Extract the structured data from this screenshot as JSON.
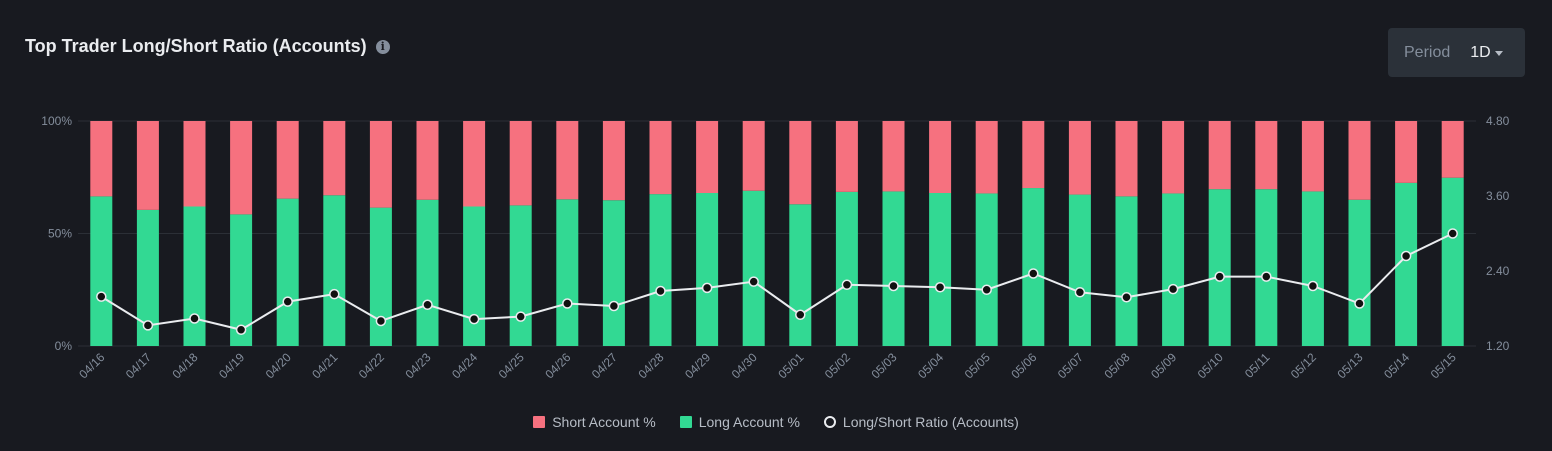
{
  "header": {
    "title": "Top Trader Long/Short Ratio (Accounts)",
    "info_icon": "info-icon",
    "period_label": "Period",
    "period_value": "1D"
  },
  "colors": {
    "background": "#181a20",
    "short": "#f6717f",
    "long": "#32d993",
    "line": "#eaecef",
    "grid": "#2b2f36",
    "axis_text": "#848e9c"
  },
  "chart_data": {
    "type": "bar",
    "stacked": true,
    "categories": [
      "04/16",
      "04/17",
      "04/18",
      "04/19",
      "04/20",
      "04/21",
      "04/22",
      "04/23",
      "04/24",
      "04/25",
      "04/26",
      "04/27",
      "04/28",
      "04/29",
      "04/30",
      "05/01",
      "05/02",
      "05/03",
      "05/04",
      "05/05",
      "05/06",
      "05/07",
      "05/08",
      "05/09",
      "05/10",
      "05/11",
      "05/12",
      "05/13",
      "05/14",
      "05/15"
    ],
    "y_left": {
      "ticks": [
        "100%",
        "50%",
        "0%"
      ],
      "range": [
        0,
        100
      ]
    },
    "y_right": {
      "ticks": [
        "4.80",
        "3.60",
        "2.40",
        "1.20"
      ],
      "range": [
        1.2,
        4.8
      ]
    },
    "series": [
      {
        "name": "Short Account %",
        "axis": "left",
        "values": [
          33.5,
          39.5,
          38,
          41.5,
          34.5,
          33,
          38.5,
          35,
          38,
          37.5,
          34.8,
          35.2,
          32.5,
          32,
          31,
          37,
          31.5,
          31.3,
          32,
          32.2,
          29.8,
          32.7,
          33.5,
          32.2,
          30.3,
          30.3,
          31.3,
          35,
          27.5,
          25.2
        ]
      },
      {
        "name": "Long Account %",
        "axis": "left",
        "values": [
          66.5,
          60.5,
          62,
          58.5,
          65.5,
          67,
          61.5,
          65,
          62,
          62.5,
          65.2,
          64.8,
          67.5,
          68,
          69,
          63,
          68.5,
          68.7,
          68,
          67.8,
          70.2,
          67.3,
          66.5,
          67.8,
          69.7,
          69.7,
          68.7,
          65,
          72.5,
          74.8
        ]
      },
      {
        "name": "Long/Short Ratio (Accounts)",
        "axis": "right",
        "type": "line",
        "values": [
          1.99,
          1.53,
          1.64,
          1.46,
          1.91,
          2.03,
          1.6,
          1.86,
          1.63,
          1.67,
          1.88,
          1.84,
          2.08,
          2.13,
          2.23,
          1.7,
          2.18,
          2.16,
          2.14,
          2.1,
          2.36,
          2.06,
          1.98,
          2.11,
          2.31,
          2.31,
          2.16,
          1.88,
          2.64,
          3.0
        ]
      }
    ]
  },
  "legend": {
    "short": "Short Account %",
    "long": "Long Account %",
    "ratio": "Long/Short Ratio (Accounts)"
  }
}
